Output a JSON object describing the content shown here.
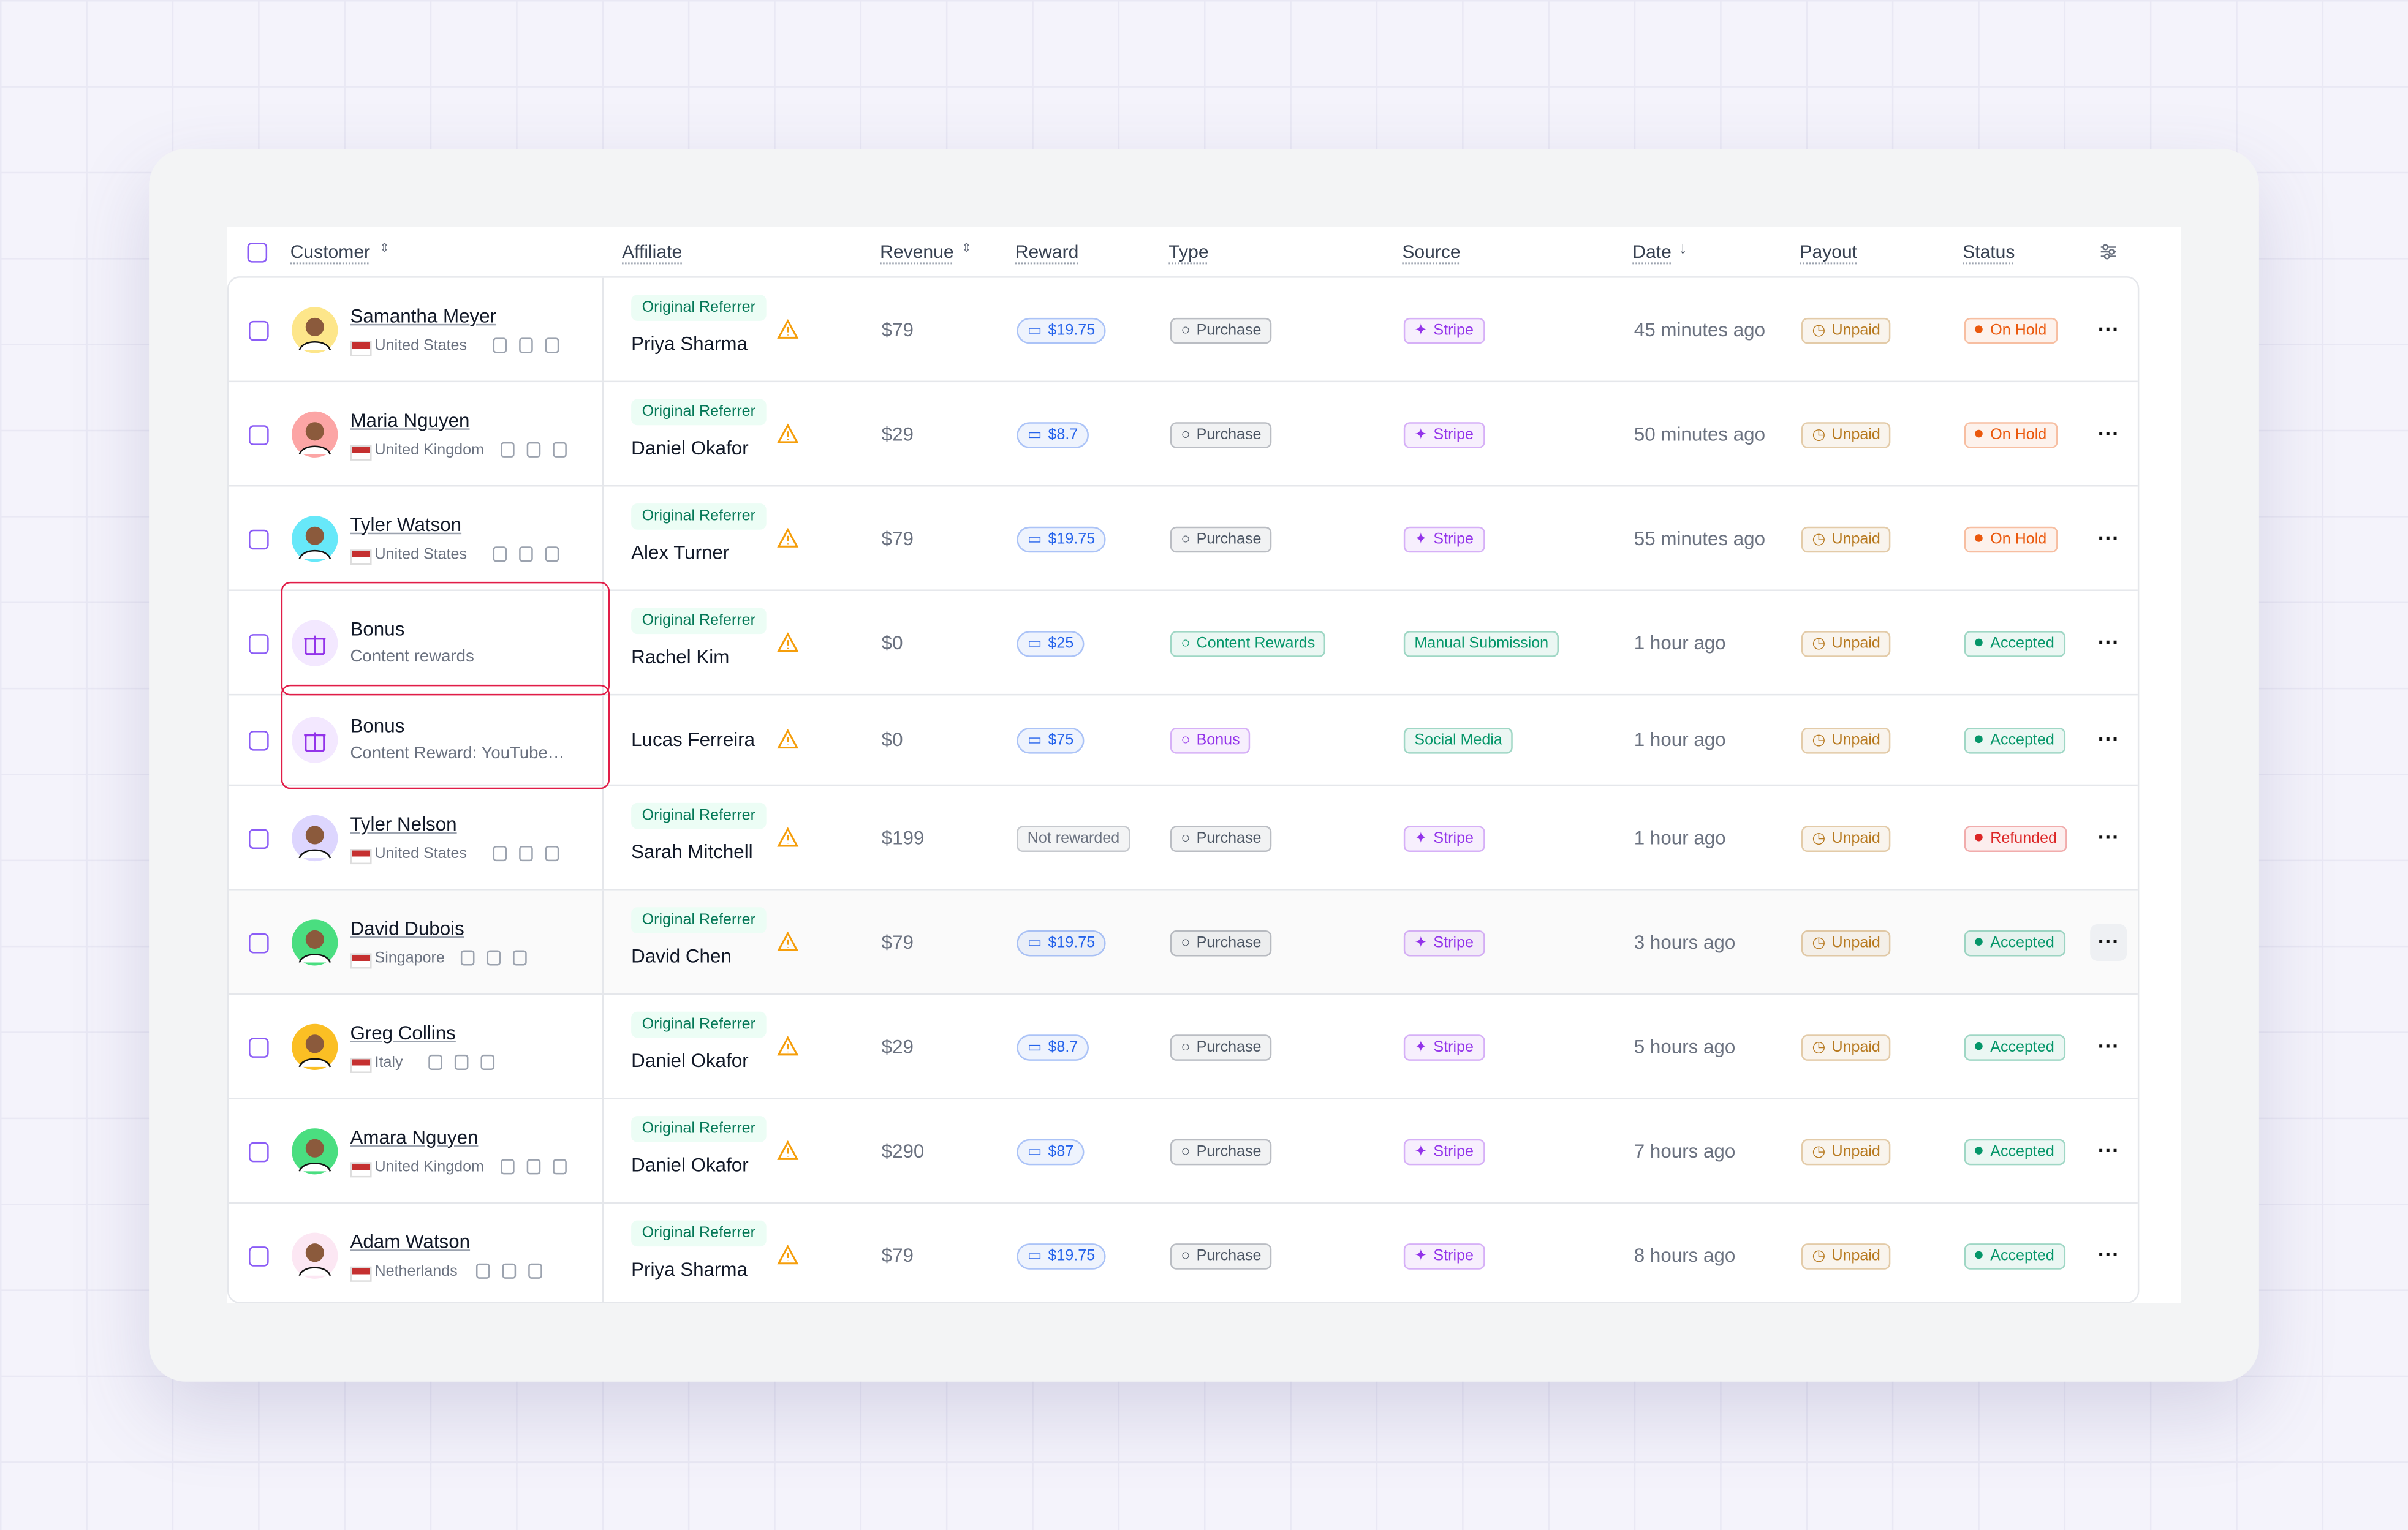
{
  "header": [
    "Customer",
    "Affiliate",
    "Revenue",
    "Reward",
    "Type",
    "Source",
    "Date",
    "Payout",
    "Status"
  ],
  "payout_color": "#b7791f",
  "rows": [
    {
      "customer": "Samantha Meyer",
      "detail": "United States",
      "avatar_color": "#fde68a",
      "affiliate_label": "Original Referrer",
      "affiliate": "Priya Sharma",
      "revenue": "$79",
      "reward": "$19.75",
      "reward_color": "#2563eb",
      "type": "Purchase",
      "type_color": "#4b5563",
      "source": "Stripe",
      "source_color": "#9333ea",
      "date": "45 minutes ago",
      "payout": "Unpaid",
      "status": "On Hold",
      "status_color": "#ea580c"
    },
    {
      "customer": "Maria Nguyen",
      "detail": "United Kingdom",
      "avatar_color": "#fca5a5",
      "affiliate_label": "Original Referrer",
      "affiliate": "Daniel Okafor",
      "revenue": "$29",
      "reward": "$8.7",
      "reward_color": "#2563eb",
      "type": "Purchase",
      "type_color": "#4b5563",
      "source": "Stripe",
      "source_color": "#9333ea",
      "date": "50 minutes ago",
      "payout": "Unpaid",
      "status": "On Hold",
      "status_color": "#ea580c"
    },
    {
      "customer": "Tyler Watson",
      "detail": "United States",
      "avatar_color": "#67e8f9",
      "affiliate_label": "Original Referrer",
      "affiliate": "Alex Turner",
      "revenue": "$79",
      "reward": "$19.75",
      "reward_color": "#2563eb",
      "type": "Purchase",
      "type_color": "#4b5563",
      "source": "Stripe",
      "source_color": "#9333ea",
      "date": "55 minutes ago",
      "payout": "Unpaid",
      "status": "On Hold",
      "status_color": "#ea580c"
    },
    {
      "customer": "Bonus",
      "detail": "Content rewards",
      "avatar_color": "#f3e8ff",
      "affiliate_label": "Original Referrer",
      "affiliate": "Rachel Kim",
      "revenue": "$0",
      "reward": "$25",
      "reward_color": "#2563eb",
      "type": "Content Rewards",
      "type_color": "#059669",
      "source": "Manual Submission",
      "source_color": "#059669",
      "date": "1 hour ago",
      "payout": "Unpaid",
      "status": "Accepted",
      "status_color": "#059669"
    },
    {
      "customer": "Bonus",
      "detail": "Content Reward: YouTube…",
      "avatar_color": "#f3e8ff",
      "affiliate": "Lucas Ferreira",
      "revenue": "$0",
      "reward": "$75",
      "reward_color": "#2563eb",
      "type": "Bonus",
      "type_color": "#9333ea",
      "source": "Social Media",
      "source_color": "#059669",
      "date": "1 hour ago",
      "payout": "Unpaid",
      "status": "Accepted",
      "status_color": "#059669"
    },
    {
      "customer": "Tyler Nelson",
      "detail": "United States",
      "avatar_color": "#ddd6fe",
      "affiliate_label": "Original Referrer",
      "affiliate": "Sarah Mitchell",
      "revenue": "$199",
      "reward": "Not rewarded",
      "reward_color": "#6b7280",
      "type": "Purchase",
      "type_color": "#4b5563",
      "source": "Stripe",
      "source_color": "#9333ea",
      "date": "1 hour ago",
      "payout": "Unpaid",
      "status": "Refunded",
      "status_color": "#dc2626"
    },
    {
      "customer": "David Dubois",
      "detail": "Singapore",
      "avatar_color": "#4ade80",
      "affiliate_label": "Original Referrer",
      "affiliate": "David Chen",
      "revenue": "$79",
      "reward": "$19.75",
      "reward_color": "#2563eb",
      "type": "Purchase",
      "type_color": "#4b5563",
      "source": "Stripe",
      "source_color": "#9333ea",
      "date": "3 hours ago",
      "payout": "Unpaid",
      "status": "Accepted",
      "status_color": "#059669"
    },
    {
      "customer": "Greg Collins",
      "detail": "Italy",
      "avatar_color": "#fbbf24",
      "affiliate_label": "Original Referrer",
      "affiliate": "Daniel Okafor",
      "revenue": "$29",
      "reward": "$8.7",
      "reward_color": "#2563eb",
      "type": "Purchase",
      "type_color": "#4b5563",
      "source": "Stripe",
      "source_color": "#9333ea",
      "date": "5 hours ago",
      "payout": "Unpaid",
      "status": "Accepted",
      "status_color": "#059669"
    },
    {
      "customer": "Amara Nguyen",
      "detail": "United Kingdom",
      "avatar_color": "#4ade80",
      "affiliate_label": "Original Referrer",
      "affiliate": "Daniel Okafor",
      "revenue": "$290",
      "reward": "$87",
      "reward_color": "#2563eb",
      "type": "Purchase",
      "type_color": "#4b5563",
      "source": "Stripe",
      "source_color": "#9333ea",
      "date": "7 hours ago",
      "payout": "Unpaid",
      "status": "Accepted",
      "status_color": "#059669"
    },
    {
      "customer": "Adam Watson",
      "detail": "Netherlands",
      "avatar_color": "#fce7f3",
      "affiliate_label": "Original Referrer",
      "affiliate": "Priya Sharma",
      "revenue": "$79",
      "reward": "$19.75",
      "reward_color": "#2563eb",
      "type": "Purchase",
      "type_color": "#4b5563",
      "source": "Stripe",
      "source_color": "#9333ea",
      "date": "8 hours ago",
      "payout": "Unpaid",
      "status": "Accepted",
      "status_color": "#059669"
    }
  ]
}
